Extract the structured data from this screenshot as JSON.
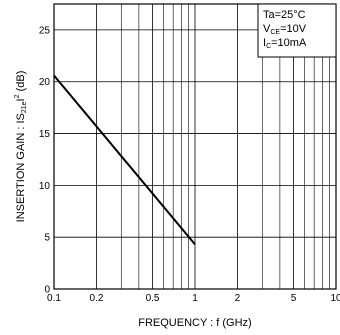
{
  "chart_data": {
    "type": "line",
    "xlabel": "FREQUENCY : f (GHz)",
    "ylabel": {
      "prefix": "INSERTION GAIN : ",
      "base": "IS",
      "sub": "21e",
      "post": "I",
      "sup": "2",
      "unit": " (dB)"
    },
    "x_scale": "log",
    "xlim": [
      0.1,
      10
    ],
    "ylim": [
      0,
      27.5
    ],
    "x_ticks": [
      0.1,
      0.2,
      0.5,
      1,
      2,
      5,
      10
    ],
    "x_tick_labels": [
      "0.1",
      "0.2",
      "0.5",
      "1",
      "2",
      "5",
      "10"
    ],
    "y_ticks": [
      0,
      5,
      10,
      15,
      20,
      25
    ],
    "y_tick_labels": [
      "0",
      "5",
      "10",
      "15",
      "20",
      "25"
    ],
    "x_minor_grid": [
      0.3,
      0.4,
      0.6,
      0.7,
      0.8,
      0.9,
      3,
      4,
      6,
      7,
      8,
      9
    ],
    "grid": true,
    "legend": {
      "placement": "top-right",
      "lines": [
        {
          "base": "Ta=25°C",
          "sub": "",
          "rest": ""
        },
        {
          "base": "V",
          "sub": "CE",
          "rest": "=10V"
        },
        {
          "base": "I",
          "sub": "C",
          "rest": "=10mA"
        }
      ]
    },
    "series": [
      {
        "x": [
          0.1,
          1.0
        ],
        "y": [
          20.6,
          4.3
        ]
      }
    ]
  }
}
